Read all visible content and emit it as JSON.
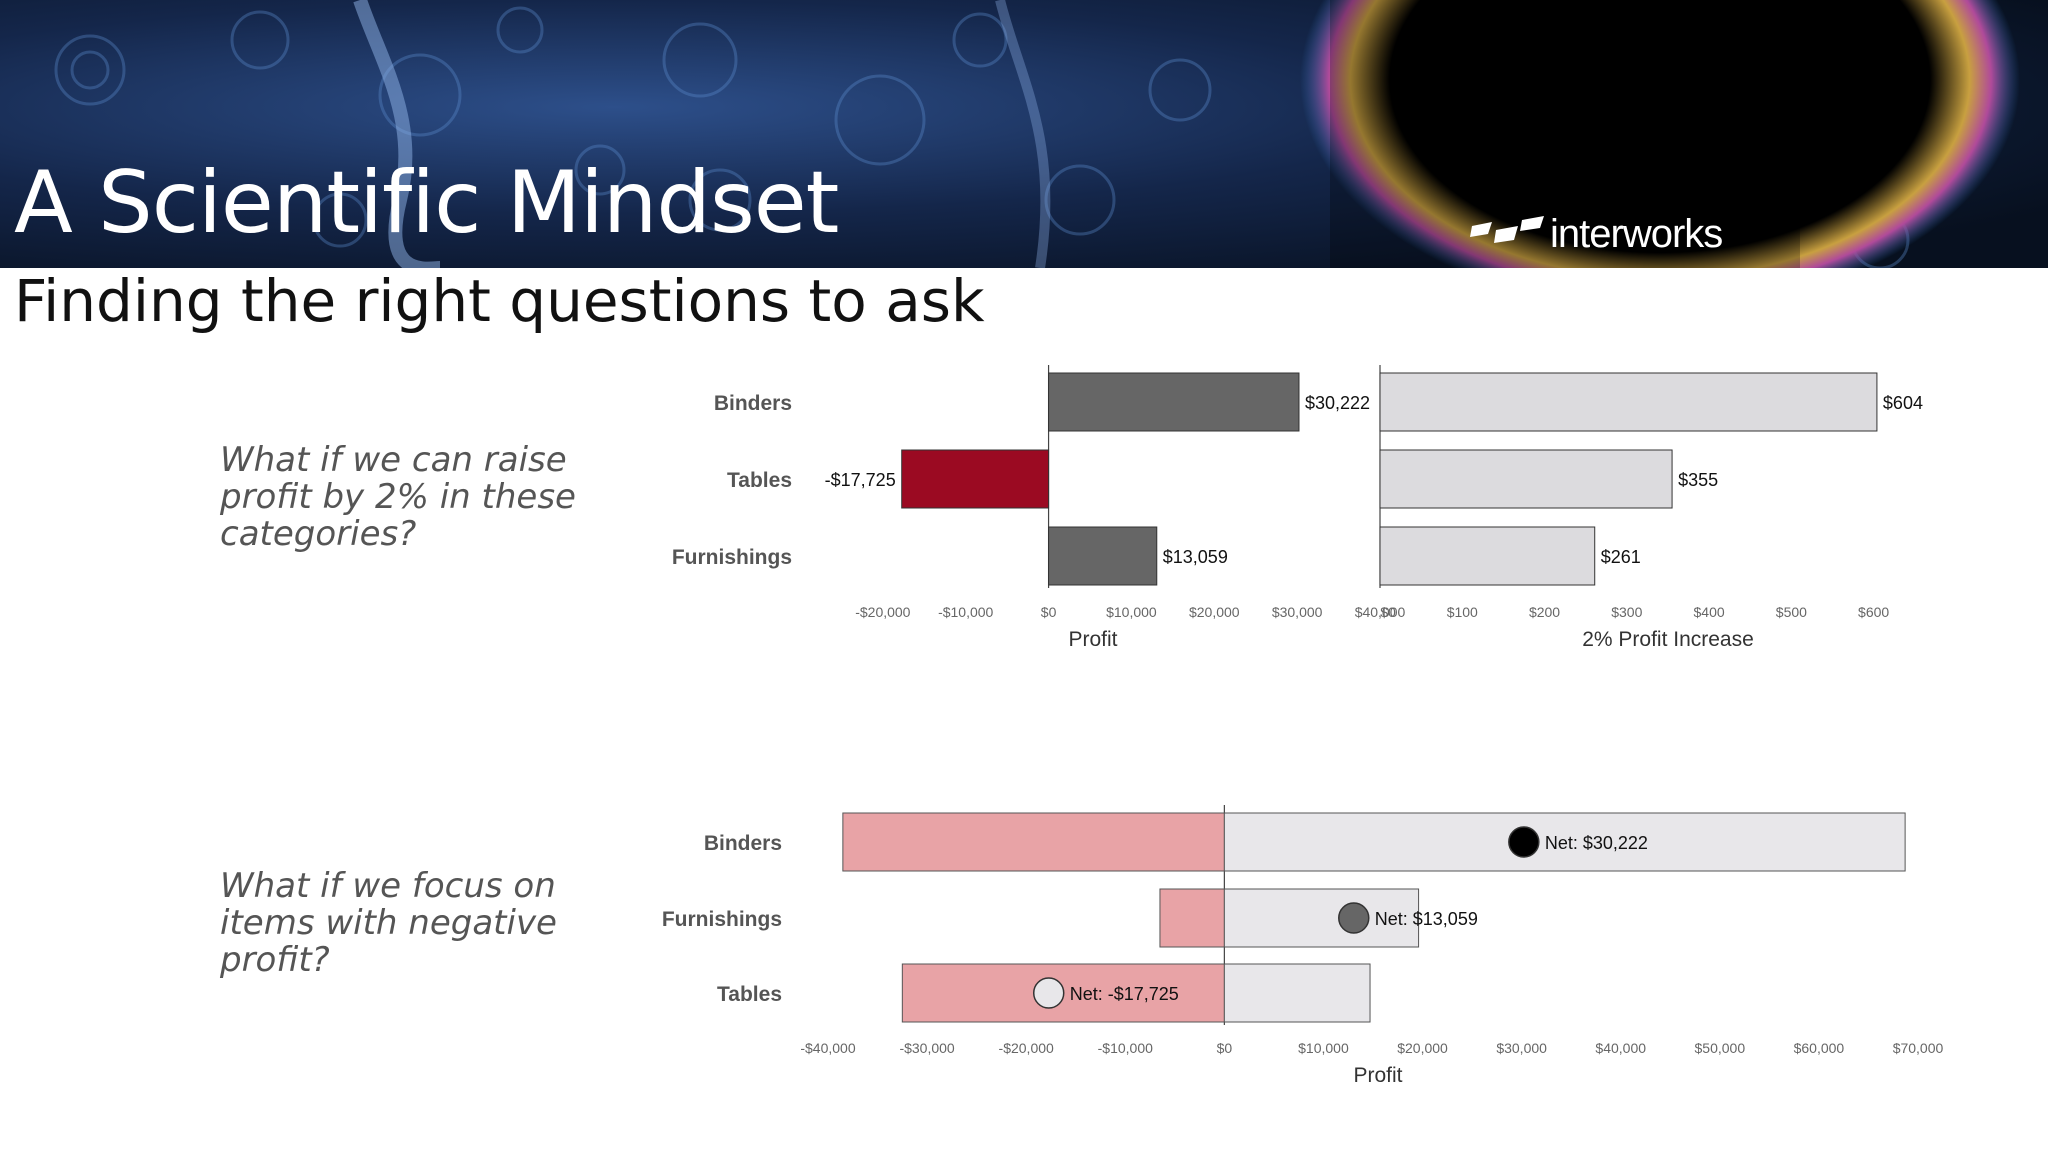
{
  "header": {
    "title": "A Scientific Mindset",
    "logo_text": "interworks",
    "subtitle": "Finding the right questions to ask"
  },
  "questions": {
    "q1": "What if we can raise profit by 2% in these categories?",
    "q2": "What if we focus on items with negative profit?"
  },
  "colors": {
    "positive_bar": "#666666",
    "negative_bar": "#9b0a22",
    "increase_bar": "#dcdbde",
    "loss_bar": "#e8a3a6",
    "gain_bar": "#e8e7ea",
    "net_positive_dot": "#000000",
    "net_mid_dot": "#666666",
    "net_negative_dot": "#e8e7ea"
  },
  "chart_data": [
    {
      "type": "bar",
      "orientation": "horizontal",
      "categories": [
        "Binders",
        "Tables",
        "Furnishings"
      ],
      "values": [
        30222,
        -17725,
        13059
      ],
      "labels": [
        "$30,222",
        "-$17,725",
        "$13,059"
      ],
      "xlabel": "Profit",
      "xlim": [
        -30000,
        40000
      ],
      "ticks": [
        -20000,
        -10000,
        0,
        10000,
        20000,
        30000,
        40000
      ],
      "tick_labels": [
        "-$20,000",
        "-$10,000",
        "$0",
        "$10,000",
        "$20,000",
        "$30,000",
        "$40,000"
      ]
    },
    {
      "type": "bar",
      "orientation": "horizontal",
      "categories": [
        "Binders",
        "Tables",
        "Furnishings"
      ],
      "values": [
        604,
        355,
        261
      ],
      "labels": [
        "$604",
        "$355",
        "$261"
      ],
      "xlabel": "2% Profit Increase",
      "xlim": [
        0,
        660
      ],
      "ticks": [
        0,
        100,
        200,
        300,
        400,
        500,
        600
      ],
      "tick_labels": [
        "$0",
        "$100",
        "$200",
        "$300",
        "$400",
        "$500",
        "$600"
      ]
    },
    {
      "type": "bar",
      "orientation": "horizontal",
      "categories": [
        "Binders",
        "Furnishings",
        "Tables"
      ],
      "series": [
        {
          "values": [
            -38500,
            -6500,
            -32500
          ]
        },
        {
          "values": [
            68700,
            19600,
            14700
          ]
        }
      ],
      "net": [
        30222,
        13059,
        -17725
      ],
      "net_labels": [
        "Net: $30,222",
        "Net: $13,059",
        "Net: -$17,725"
      ],
      "xlabel": "Profit",
      "xlim": [
        -40000,
        70000
      ],
      "ticks": [
        -40000,
        -30000,
        -20000,
        -10000,
        0,
        10000,
        20000,
        30000,
        40000,
        50000,
        60000,
        70000
      ],
      "tick_labels": [
        "-$40,000",
        "-$30,000",
        "-$20,000",
        "-$10,000",
        "$0",
        "$10,000",
        "$20,000",
        "$30,000",
        "$40,000",
        "$50,000",
        "$60,000",
        "$70,000"
      ]
    }
  ]
}
